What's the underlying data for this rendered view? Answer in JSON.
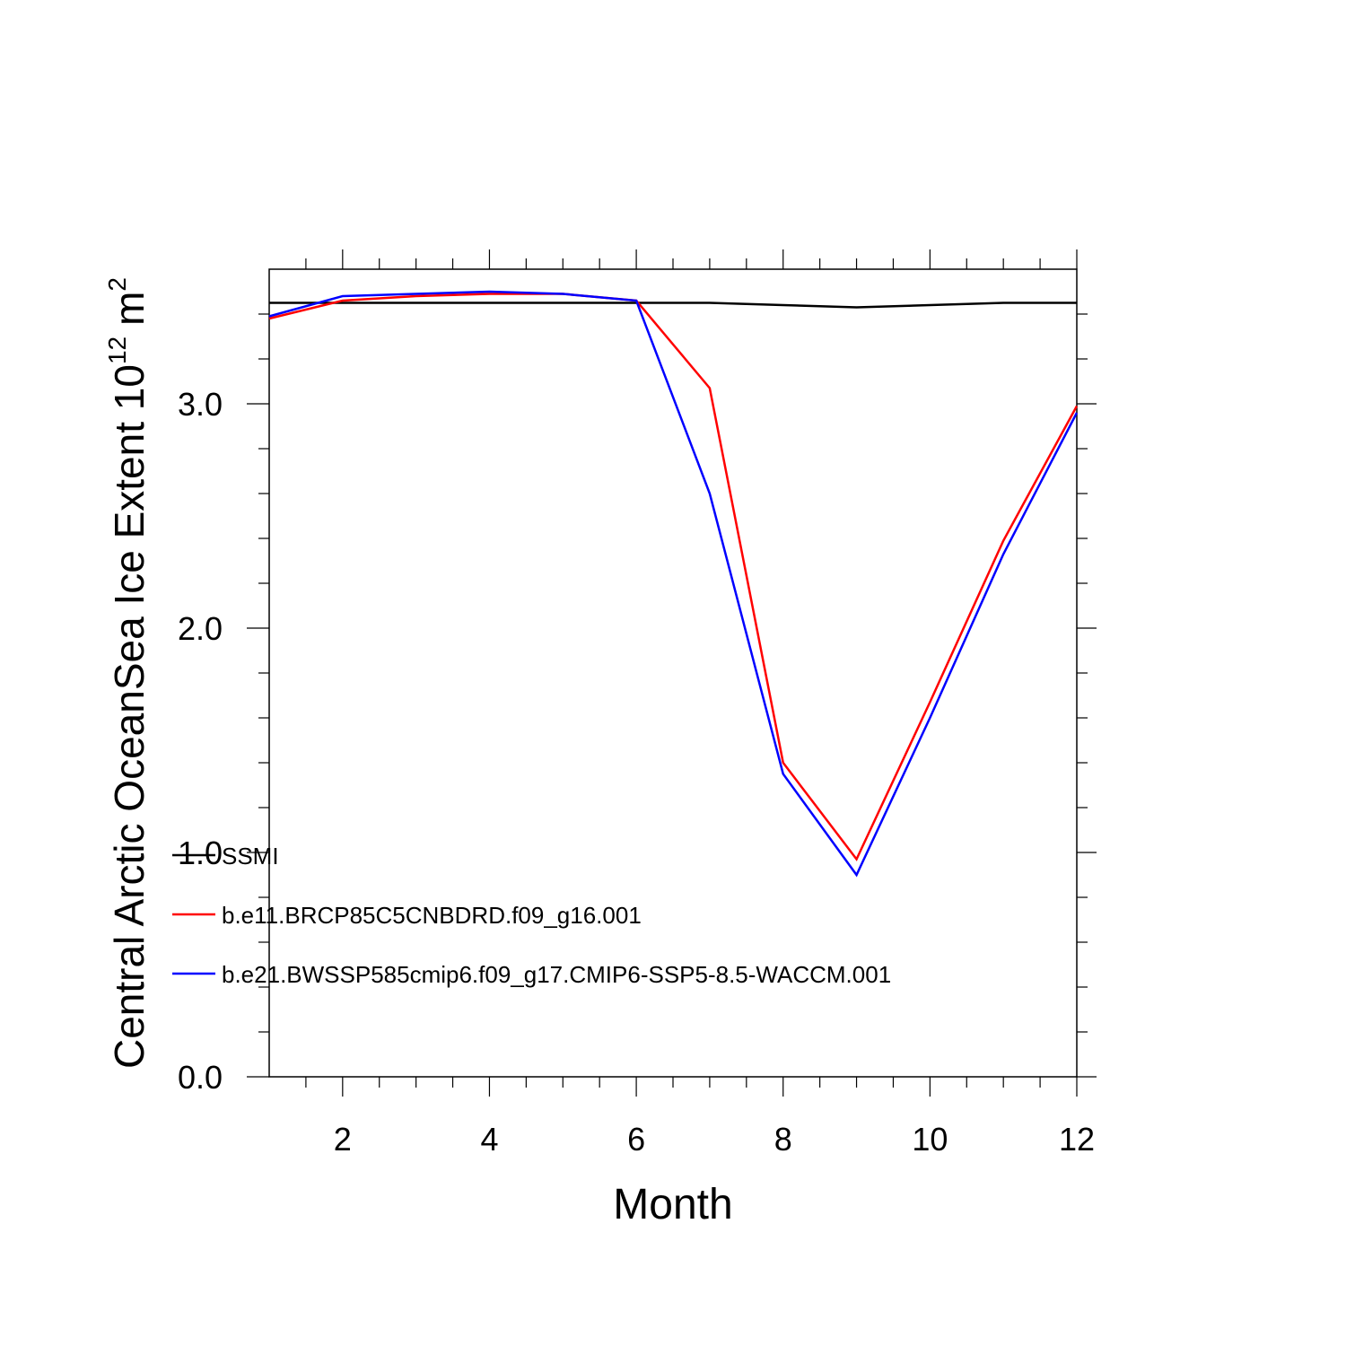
{
  "chart_data": {
    "type": "line",
    "xlabel": "Month",
    "ylabel": "Central Arctic OceanSea Ice Extent 10",
    "ylabel_exp": "12",
    "ylabel_unit": "m",
    "ylabel_unit_exp": "2",
    "x": [
      1,
      2,
      3,
      4,
      5,
      6,
      7,
      8,
      9,
      10,
      11,
      12
    ],
    "xlim": [
      1,
      12
    ],
    "xticks": [
      2,
      4,
      6,
      8,
      10,
      12
    ],
    "xminorticks": [
      1.5,
      2.5,
      3,
      3.5,
      4.5,
      5,
      5.5,
      6.5,
      7,
      7.5,
      8.5,
      9,
      9.5,
      10.5,
      11,
      11.5
    ],
    "ylim": [
      0,
      3.6
    ],
    "yticks": [
      {
        "value": 0,
        "label": "0.0"
      },
      {
        "value": 1,
        "label": "1.0"
      },
      {
        "value": 2,
        "label": "2.0"
      },
      {
        "value": 3,
        "label": "3.0"
      }
    ],
    "yminorticks": [
      0.2,
      0.4,
      0.6,
      0.8,
      1.2,
      1.4,
      1.6,
      1.8,
      2.2,
      2.4,
      2.6,
      2.8,
      3.2,
      3.4
    ],
    "legend": "lower left",
    "series": [
      {
        "name": "SSMI",
        "color": "#000000",
        "values": [
          3.45,
          3.45,
          3.45,
          3.45,
          3.45,
          3.45,
          3.45,
          3.44,
          3.43,
          3.44,
          3.45,
          3.45
        ]
      },
      {
        "name": "b.e11.BRCP85C5CNBDRD.f09_g16.001",
        "color": "#ff0000",
        "values": [
          3.38,
          3.46,
          3.48,
          3.49,
          3.49,
          3.46,
          3.07,
          1.4,
          0.97,
          1.67,
          2.39,
          2.99
        ]
      },
      {
        "name": "b.e21.BWSSP585cmip6.f09_g17.CMIP6-SSP5-8.5-WACCM.001",
        "color": "#0000ff",
        "values": [
          3.39,
          3.48,
          3.49,
          3.5,
          3.49,
          3.46,
          2.6,
          1.35,
          0.9,
          1.6,
          2.33,
          2.96
        ]
      }
    ]
  }
}
